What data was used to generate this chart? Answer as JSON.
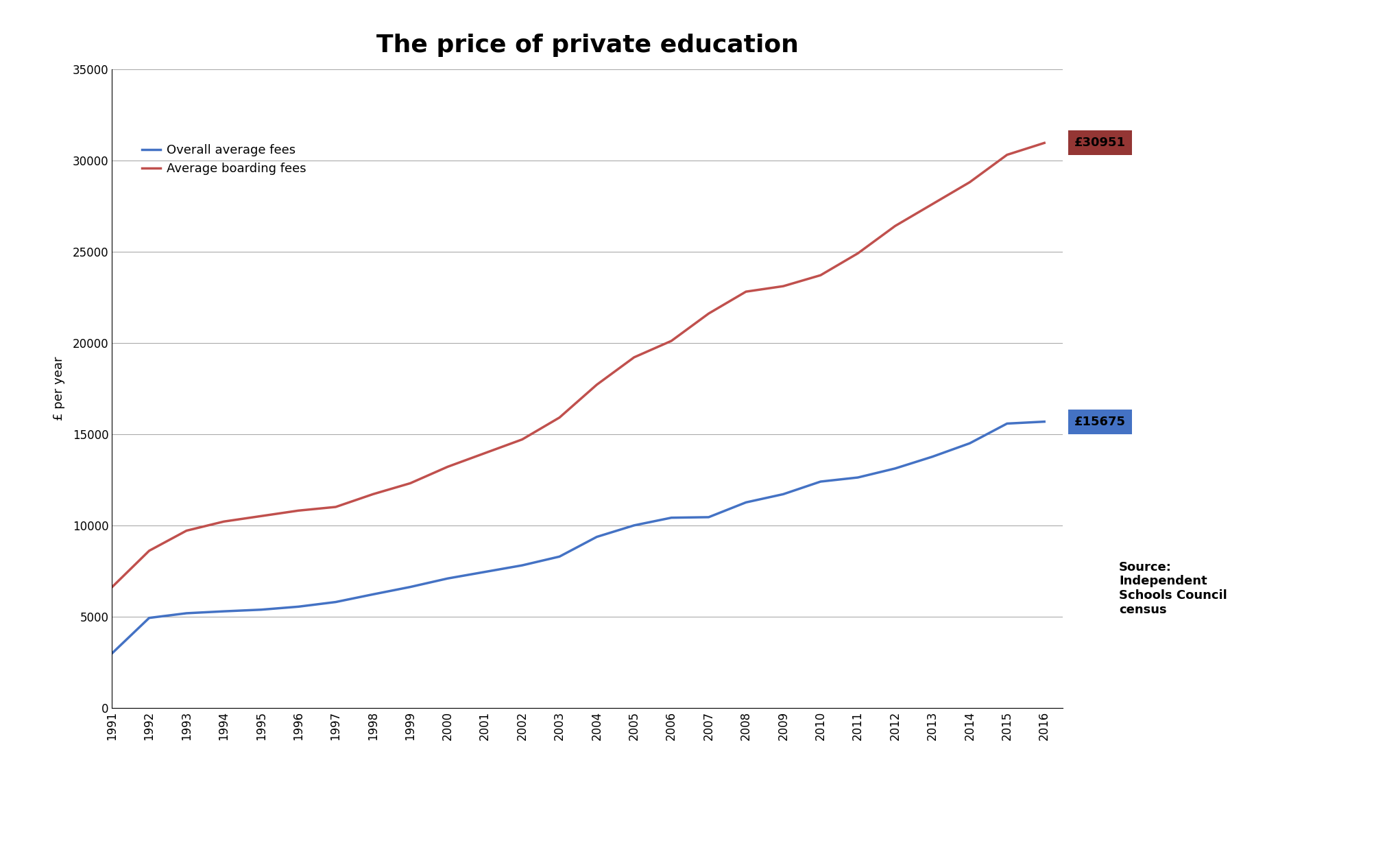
{
  "title": "The price of private education",
  "ylabel": "£ per year",
  "years": [
    1991,
    1992,
    1993,
    1994,
    1995,
    1996,
    1997,
    1998,
    1999,
    2000,
    2001,
    2002,
    2003,
    2004,
    2005,
    2006,
    2007,
    2008,
    2009,
    2010,
    2011,
    2012,
    2013,
    2014,
    2015,
    2016
  ],
  "overall_fees": [
    2970,
    4920,
    5175,
    5280,
    5370,
    5535,
    5790,
    6210,
    6615,
    7080,
    7440,
    7800,
    8280,
    9360,
    9990,
    10410,
    10440,
    11250,
    11700,
    12390,
    12615,
    13110,
    13755,
    14490,
    15570,
    15675
  ],
  "boarding_fees": [
    6600,
    8600,
    9700,
    10200,
    10500,
    10800,
    11000,
    11700,
    12300,
    13200,
    13950,
    14700,
    15900,
    17700,
    19200,
    20100,
    21600,
    22800,
    23100,
    23700,
    24900,
    26400,
    27600,
    28800,
    30300,
    30951
  ],
  "overall_color": "#4472C4",
  "boarding_color": "#C0504D",
  "overall_label": "Overall average fees",
  "boarding_label": "Average boarding fees",
  "overall_end_label": "£15675",
  "boarding_end_label": "£30951",
  "overall_box_color": "#4472C4",
  "boarding_box_color": "#943634",
  "ylim": [
    0,
    35000
  ],
  "yticks": [
    0,
    5000,
    10000,
    15000,
    20000,
    25000,
    30000,
    35000
  ],
  "source_text": "Source:\nIndependent\nSchools Council\ncensus",
  "background_color": "#FFFFFF",
  "grid_color": "#AAAAAA",
  "title_fontsize": 26,
  "label_fontsize": 13,
  "tick_fontsize": 12,
  "legend_fontsize": 13,
  "annotation_fontsize": 13
}
